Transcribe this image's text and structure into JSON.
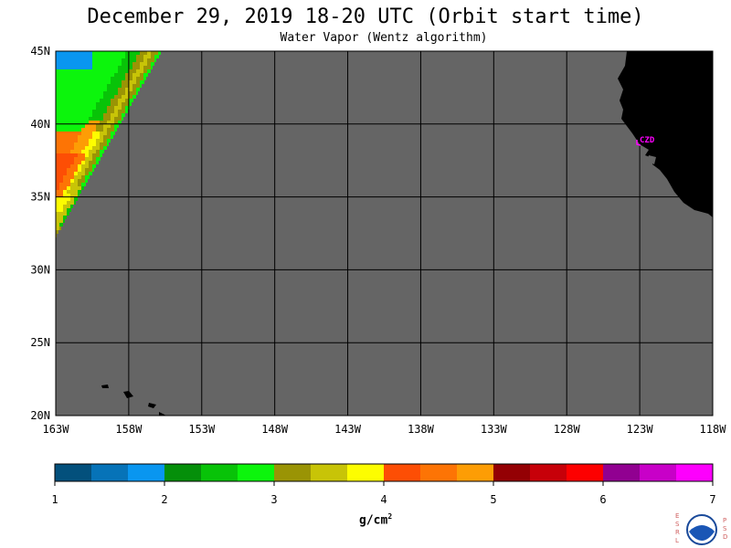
{
  "title": "December 29, 2019  18-20 UTC  (Orbit start time)",
  "subtitle": "Water Vapor (Wentz algorithm)",
  "units_base": "g/cm",
  "units_exp": "2",
  "map": {
    "lat_range": [
      20,
      45
    ],
    "lon_range": [
      -163,
      -118
    ],
    "lat_labels": [
      "45N",
      "40N",
      "35N",
      "30N",
      "25N",
      "20N"
    ],
    "lat_values": [
      45,
      40,
      35,
      30,
      25,
      20
    ],
    "lon_labels": [
      "163W",
      "158W",
      "153W",
      "148W",
      "143W",
      "138W",
      "133W",
      "128W",
      "123W",
      "118W"
    ],
    "lon_values": [
      -163,
      -158,
      -153,
      -148,
      -143,
      -138,
      -133,
      -128,
      -123,
      -118
    ],
    "station_label": "CZD",
    "colors": {
      "no_data": "#656565",
      "land": "#000000",
      "grid": "#000000",
      "station": "#ff00ff"
    }
  },
  "colorbar": {
    "tick_labels": [
      "1",
      "2",
      "3",
      "4",
      "5",
      "6",
      "7"
    ],
    "range": [
      1,
      7
    ],
    "colors": [
      "#03507c",
      "#0673b8",
      "#0996f0",
      "#058f0a",
      "#08c308",
      "#0cf50c",
      "#9a9405",
      "#c8c407",
      "#fdfd00",
      "#fd4e05",
      "#fd7405",
      "#fd9d05",
      "#940004",
      "#c70009",
      "#fd0000",
      "#910091",
      "#c800c8",
      "#fd00fd"
    ]
  },
  "logo": {
    "left_text": "ESRL",
    "right_text": "PSD",
    "center_text": "NOAA"
  }
}
